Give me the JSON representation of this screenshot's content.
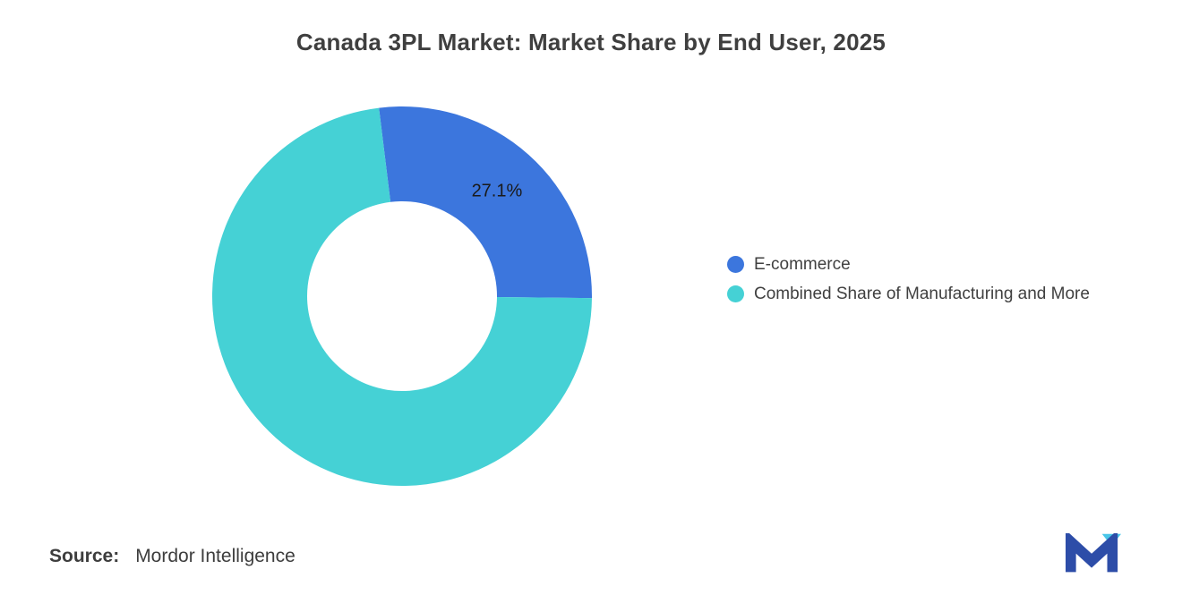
{
  "chart_data": {
    "type": "pie",
    "subtype": "donut",
    "title": "Canada 3PL Market: Market Share by End User, 2025",
    "series": [
      {
        "name": "E-commerce",
        "value": 27.1,
        "color": "#3C76DD",
        "data_label": "27.1%"
      },
      {
        "name": "Combined Share of Manufacturing and More",
        "value": 72.9,
        "color": "#45D1D5",
        "data_label": ""
      }
    ],
    "start_angle_deg": -7,
    "inner_radius_ratio": 0.5,
    "legend_position": "right",
    "background": "#ffffff"
  },
  "legend": {
    "items": [
      {
        "label": "E-commerce",
        "color": "#3C76DD"
      },
      {
        "label": "Combined Share of Manufacturing and More",
        "color": "#45D1D5"
      }
    ]
  },
  "source": {
    "label": "Source:",
    "value": "Mordor Intelligence"
  },
  "logo": {
    "icon": "mordor-intelligence-logo",
    "primary_color": "#2D4DA8",
    "accent_color": "#49C6E8"
  }
}
